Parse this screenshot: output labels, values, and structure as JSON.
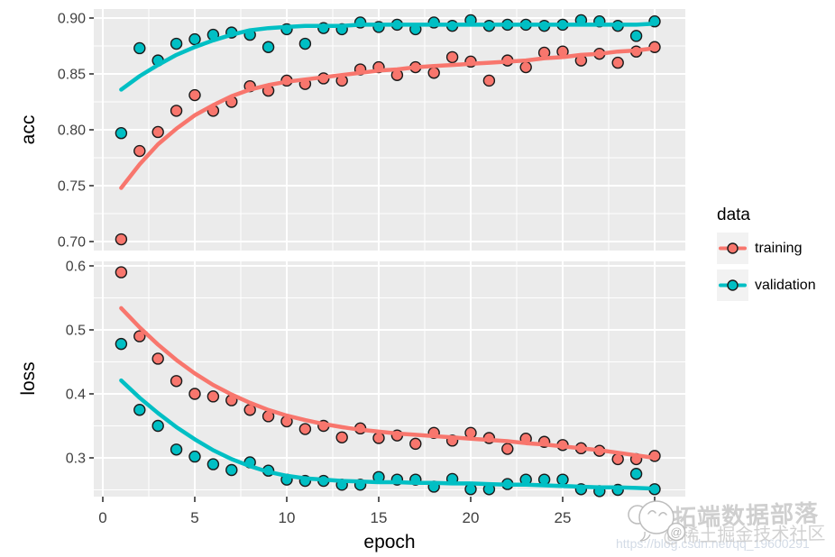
{
  "style": {
    "panel_bg": "#EBEBEB",
    "grid_color": "#FFFFFF",
    "tick_color": "#333333",
    "tick_label_color": "#404040",
    "point_stroke": "#1a1a1a",
    "training_color": "#F8766D",
    "validation_color": "#00BFC4"
  },
  "legend": {
    "title": "data",
    "items": [
      {
        "label": "training",
        "color": "#F8766D"
      },
      {
        "label": "validation",
        "color": "#00BFC4"
      }
    ]
  },
  "x_axis": {
    "title": "epoch",
    "ticks": [
      0,
      5,
      10,
      15,
      20,
      25,
      30
    ],
    "labels": [
      "0",
      "5",
      "10",
      "15",
      "20",
      "25",
      ""
    ],
    "grid_major": [
      0,
      5,
      10,
      15,
      20,
      25,
      30
    ],
    "grid_minor": [
      2.5,
      7.5,
      12.5,
      17.5,
      22.5,
      27.5
    ],
    "xlim": [
      -0.5,
      31.7
    ]
  },
  "epochs": [
    1,
    2,
    3,
    4,
    5,
    6,
    7,
    8,
    9,
    10,
    11,
    12,
    13,
    14,
    15,
    16,
    17,
    18,
    19,
    20,
    21,
    22,
    23,
    24,
    25,
    26,
    27,
    28,
    29,
    30
  ],
  "chart_data": [
    {
      "type": "scatter+smooth",
      "facet": "acc",
      "y_label": "acc",
      "ylim": [
        0.69,
        0.91
      ],
      "y_ticks": [
        0.7,
        0.75,
        0.8,
        0.85,
        0.9
      ],
      "y_tick_labels": [
        "0.70",
        "0.75",
        "0.80",
        "0.85",
        "0.90"
      ],
      "y_minor": [
        0.725,
        0.775,
        0.825,
        0.875
      ],
      "series": [
        {
          "name": "training",
          "color": "#F8766D",
          "points": [
            0.702,
            0.781,
            0.798,
            0.817,
            0.831,
            0.817,
            0.825,
            0.839,
            0.835,
            0.844,
            0.841,
            0.846,
            0.844,
            0.854,
            0.856,
            0.849,
            0.856,
            0.851,
            0.865,
            0.861,
            0.844,
            0.862,
            0.856,
            0.869,
            0.87,
            0.862,
            0.868,
            0.86,
            0.87,
            0.874
          ],
          "smooth": [
            0.748,
            0.769,
            0.787,
            0.801,
            0.813,
            0.822,
            0.83,
            0.836,
            0.84,
            0.843,
            0.845,
            0.847,
            0.849,
            0.851,
            0.853,
            0.854,
            0.856,
            0.857,
            0.858,
            0.859,
            0.86,
            0.861,
            0.862,
            0.864,
            0.865,
            0.867,
            0.868,
            0.87,
            0.871,
            0.873
          ]
        },
        {
          "name": "validation",
          "color": "#00BFC4",
          "points": [
            0.797,
            0.873,
            0.862,
            0.877,
            0.881,
            0.885,
            0.887,
            0.885,
            0.874,
            0.89,
            0.877,
            0.891,
            0.89,
            0.896,
            0.892,
            0.894,
            0.89,
            0.896,
            0.893,
            0.898,
            0.893,
            0.894,
            0.894,
            0.893,
            0.894,
            0.898,
            0.897,
            0.893,
            0.884,
            0.897
          ],
          "smooth": [
            0.836,
            0.848,
            0.858,
            0.867,
            0.874,
            0.88,
            0.885,
            0.889,
            0.891,
            0.892,
            0.893,
            0.893,
            0.893,
            0.894,
            0.894,
            0.894,
            0.894,
            0.894,
            0.894,
            0.894,
            0.894,
            0.894,
            0.894,
            0.894,
            0.894,
            0.894,
            0.894,
            0.894,
            0.894,
            0.895
          ]
        }
      ]
    },
    {
      "type": "scatter+smooth",
      "facet": "loss",
      "y_label": "loss",
      "ylim": [
        0.24,
        0.61
      ],
      "y_ticks": [
        0.3,
        0.4,
        0.5,
        0.6
      ],
      "y_tick_labels": [
        "0.3",
        "0.4",
        "0.5",
        "0.6"
      ],
      "y_minor": [
        0.25,
        0.35,
        0.45,
        0.55
      ],
      "series": [
        {
          "name": "training",
          "color": "#F8766D",
          "points": [
            0.59,
            0.49,
            0.455,
            0.42,
            0.4,
            0.396,
            0.39,
            0.375,
            0.365,
            0.357,
            0.345,
            0.35,
            0.332,
            0.346,
            0.331,
            0.335,
            0.322,
            0.339,
            0.327,
            0.339,
            0.331,
            0.314,
            0.33,
            0.325,
            0.32,
            0.315,
            0.311,
            0.298,
            0.298,
            0.303
          ],
          "smooth": [
            0.534,
            0.504,
            0.477,
            0.453,
            0.432,
            0.414,
            0.399,
            0.386,
            0.375,
            0.366,
            0.359,
            0.353,
            0.348,
            0.344,
            0.341,
            0.338,
            0.336,
            0.334,
            0.332,
            0.33,
            0.328,
            0.326,
            0.323,
            0.321,
            0.318,
            0.315,
            0.312,
            0.308,
            0.304,
            0.3
          ]
        },
        {
          "name": "validation",
          "color": "#00BFC4",
          "points": [
            0.478,
            0.375,
            0.35,
            0.313,
            0.302,
            0.29,
            0.281,
            0.293,
            0.28,
            0.266,
            0.264,
            0.264,
            0.258,
            0.258,
            0.27,
            0.266,
            0.266,
            0.255,
            0.267,
            0.251,
            0.251,
            0.259,
            0.266,
            0.266,
            0.266,
            0.251,
            0.248,
            0.25,
            0.275,
            0.251
          ],
          "smooth": [
            0.421,
            0.394,
            0.37,
            0.348,
            0.329,
            0.312,
            0.298,
            0.287,
            0.278,
            0.272,
            0.268,
            0.266,
            0.264,
            0.263,
            0.262,
            0.262,
            0.261,
            0.261,
            0.26,
            0.26,
            0.259,
            0.258,
            0.258,
            0.257,
            0.256,
            0.255,
            0.254,
            0.254,
            0.253,
            0.252
          ]
        }
      ]
    }
  ],
  "watermark": {
    "brand": "拓端数据部落",
    "community": "@稀土掘金技术社区",
    "url": "https://blog.csdn.net/qq_19600291",
    "at_symbol": "@"
  }
}
